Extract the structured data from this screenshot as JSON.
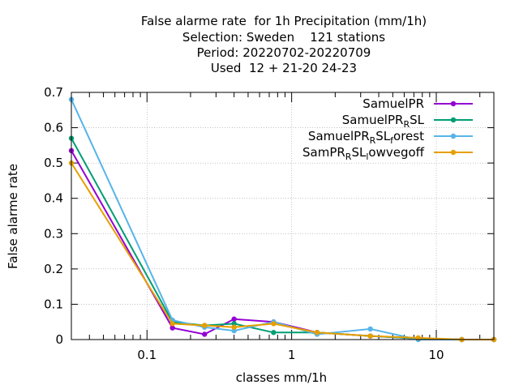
{
  "chart_data": {
    "type": "line",
    "title_lines": [
      "False alarme rate  for 1h Precipitation (mm/1h)",
      "Selection: Sweden    121 stations",
      "Period: 20220702-20220709",
      "Used  12 + 21-20 24-23"
    ],
    "xlabel": "classes mm/1h",
    "ylabel": "False alarme rate",
    "xscale": "log",
    "xlim": [
      0.03,
      25
    ],
    "ylim": [
      0,
      0.7
    ],
    "yticks": [
      "0",
      "0.1",
      "0.2",
      "0.3",
      "0.4",
      "0.5",
      "0.6",
      "0.7"
    ],
    "xticks": [
      "0.1",
      "1",
      "10"
    ],
    "grid": true,
    "legend_position": "top-right",
    "series": [
      {
        "name": "SamuelPR",
        "color": "#9400d3",
        "x": [
          0.03,
          0.15,
          0.25,
          0.4,
          0.75,
          1.5,
          3.5,
          7.5,
          15,
          25
        ],
        "y": [
          0.535,
          0.033,
          0.015,
          0.058,
          0.05,
          0.02,
          0.01,
          0.003,
          0.0,
          0.0
        ]
      },
      {
        "name": "SamuelPR_RSL",
        "color": "#009e73",
        "x": [
          0.03,
          0.15,
          0.25,
          0.4,
          0.75,
          1.5,
          3.5,
          7.5,
          15,
          25
        ],
        "y": [
          0.57,
          0.05,
          0.04,
          0.045,
          0.02,
          0.02,
          0.01,
          0.003,
          0.0,
          0.0
        ]
      },
      {
        "name": "SamuelPR_RSL_forest",
        "color": "#56b4e9",
        "x": [
          0.03,
          0.15,
          0.25,
          0.4,
          0.75,
          1.5,
          3.5,
          7.5,
          15,
          25
        ],
        "y": [
          0.68,
          0.055,
          0.035,
          0.025,
          0.05,
          0.015,
          0.03,
          0.0,
          0.0,
          0.0
        ]
      },
      {
        "name": "SamPR_RSL_lowvegoff",
        "color": "#e69f00",
        "x": [
          0.03,
          0.15,
          0.25,
          0.4,
          0.75,
          1.5,
          3.5,
          7.5,
          15,
          25
        ],
        "y": [
          0.5,
          0.045,
          0.04,
          0.035,
          0.045,
          0.02,
          0.01,
          0.005,
          0.0,
          0.0
        ]
      }
    ],
    "legend": [
      {
        "base": "SamuelPR",
        "parts": [
          {
            "t": "SamuelPR",
            "s": "n"
          }
        ]
      },
      {
        "base": "SamuelPR_RSL",
        "parts": [
          {
            "t": "SamuelPR",
            "s": "n"
          },
          {
            "t": "R",
            "s": "sub"
          },
          {
            "t": "SL",
            "s": "n"
          }
        ]
      },
      {
        "base": "SamuelPR_RSL_forest",
        "parts": [
          {
            "t": "SamuelPR",
            "s": "n"
          },
          {
            "t": "R",
            "s": "sub"
          },
          {
            "t": "SL",
            "s": "n"
          },
          {
            "t": "f",
            "s": "sub"
          },
          {
            "t": "orest",
            "s": "n"
          }
        ]
      },
      {
        "base": "SamPR_RSL_lowvegoff",
        "parts": [
          {
            "t": "SamPR",
            "s": "n"
          },
          {
            "t": "R",
            "s": "sub"
          },
          {
            "t": "SL",
            "s": "n"
          },
          {
            "t": "l",
            "s": "sub"
          },
          {
            "t": "owvegoff",
            "s": "n"
          }
        ]
      }
    ]
  }
}
